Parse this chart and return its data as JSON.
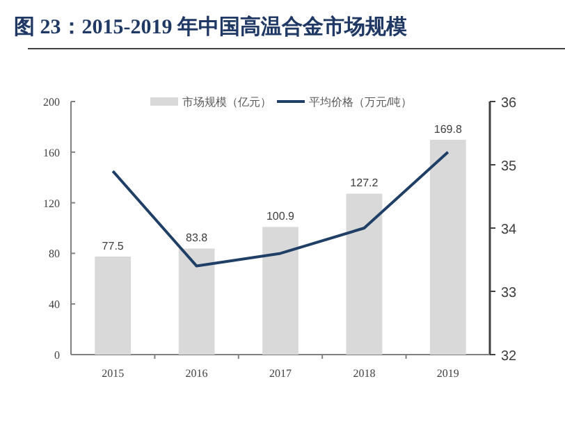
{
  "chart_data": {
    "type": "bar",
    "title": "图 23：2015-2019 年中国高温合金市场规模",
    "categories": [
      "2015",
      "2016",
      "2017",
      "2018",
      "2019"
    ],
    "series": [
      {
        "name": "市场规模（亿元）",
        "color": "#d9d9d9",
        "values": [
          77.5,
          83.8,
          100.9,
          127.2,
          169.8
        ],
        "value_labels": [
          "77.5",
          "83.8",
          "100.9",
          "127.2",
          "169.8"
        ]
      },
      {
        "name": "平均价格（万元/吨）",
        "type": "line",
        "axis": "y2",
        "color": "#203f66",
        "values": [
          34.9,
          33.4,
          33.6,
          34.0,
          35.2
        ]
      }
    ],
    "ylim": [
      0,
      200
    ],
    "yticks": [
      0,
      40,
      80,
      120,
      160,
      200
    ],
    "y2lim": [
      32,
      36
    ],
    "y2ticks": [
      32,
      33,
      34,
      35,
      36
    ],
    "legend": "top",
    "grid": false
  }
}
